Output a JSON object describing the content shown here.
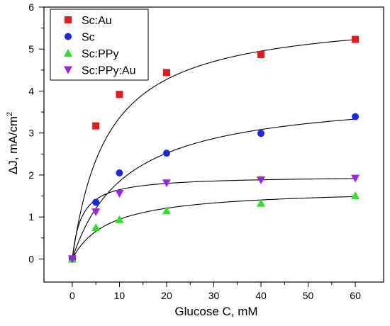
{
  "chart_data": {
    "type": "scatter",
    "xlabel": "Glucose C, mM",
    "ylabel": "ΔJ, mA/cm",
    "ylabel_superscript": "2",
    "xlim": [
      -6,
      66
    ],
    "ylim": [
      -0.55,
      6
    ],
    "x_ticks": [
      0,
      10,
      20,
      30,
      40,
      50,
      60
    ],
    "y_ticks": [
      0,
      1,
      2,
      3,
      4,
      5,
      6
    ],
    "grid": false,
    "legend_position": "top-left",
    "series": [
      {
        "name": "Sc:Au",
        "marker": "square",
        "color": "#e8191c",
        "x": [
          0,
          5,
          10,
          20,
          40,
          60
        ],
        "y": [
          0.0,
          3.17,
          3.92,
          4.44,
          4.87,
          5.23
        ],
        "fit": {
          "model": "michaelis-menten",
          "Jmax": 5.88,
          "K": 7.5
        }
      },
      {
        "name": "Sc",
        "marker": "circle",
        "color": "#1c28e0",
        "x": [
          0,
          5,
          10,
          20,
          40,
          60
        ],
        "y": [
          0.0,
          1.35,
          2.05,
          2.52,
          2.99,
          3.39
        ],
        "fit": {
          "model": "michaelis-menten",
          "Jmax": 3.97,
          "K": 11.5
        }
      },
      {
        "name": "Sc:PPy",
        "marker": "triangle-up",
        "color": "#2ee02a",
        "x": [
          0,
          5,
          10,
          20,
          40,
          60
        ],
        "y": [
          0.0,
          0.75,
          0.94,
          1.15,
          1.33,
          1.51
        ],
        "fit": {
          "model": "michaelis-menten",
          "Jmax": 1.68,
          "K": 7.8
        }
      },
      {
        "name": "Sc:PPy:Au",
        "marker": "triangle-down",
        "color": "#9a23e6",
        "x": [
          0,
          5,
          10,
          20,
          40,
          60
        ],
        "y": [
          0.0,
          1.12,
          1.56,
          1.81,
          1.88,
          1.92
        ],
        "fit": {
          "model": "michaelis-menten",
          "Jmax": 1.98,
          "K": 2.0
        }
      }
    ]
  }
}
